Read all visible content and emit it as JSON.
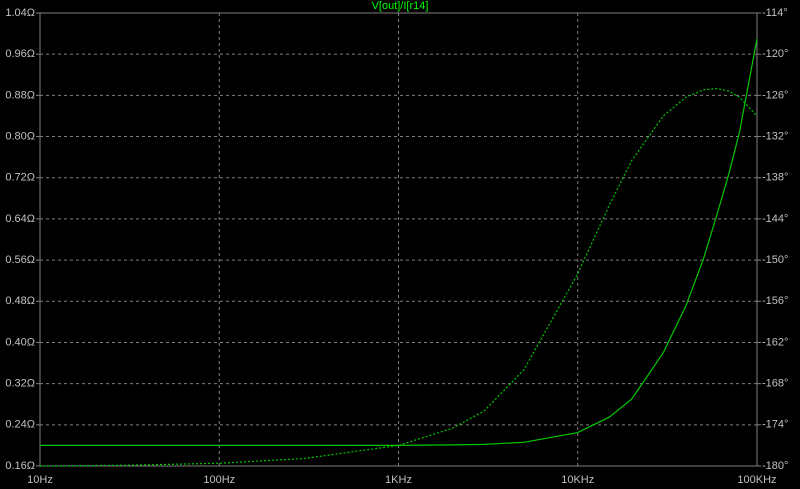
{
  "chart_data": {
    "type": "line",
    "title": "V[out]/I[r14]",
    "x": [
      10,
      30,
      100,
      300,
      1000,
      2000,
      3000,
      5000,
      10000,
      15000,
      20000,
      30000,
      40000,
      50000,
      60000,
      70000,
      80000,
      100000
    ],
    "xscale": "log",
    "xlim": [
      10,
      100000
    ],
    "xticks": [
      {
        "value": 10,
        "label": "10Hz"
      },
      {
        "value": 100,
        "label": "100Hz"
      },
      {
        "value": 1000,
        "label": "1KHz"
      },
      {
        "value": 10000,
        "label": "10KHz"
      },
      {
        "value": 100000,
        "label": "100KHz"
      }
    ],
    "ylim": [
      0.16,
      1.04
    ],
    "yticks": [
      {
        "value": 0.16,
        "label": "0.16Ω"
      },
      {
        "value": 0.24,
        "label": "0.24Ω"
      },
      {
        "value": 0.32,
        "label": "0.32Ω"
      },
      {
        "value": 0.4,
        "label": "0.40Ω"
      },
      {
        "value": 0.48,
        "label": "0.48Ω"
      },
      {
        "value": 0.56,
        "label": "0.56Ω"
      },
      {
        "value": 0.64,
        "label": "0.64Ω"
      },
      {
        "value": 0.72,
        "label": "0.72Ω"
      },
      {
        "value": 0.8,
        "label": "0.80Ω"
      },
      {
        "value": 0.88,
        "label": "0.88Ω"
      },
      {
        "value": 0.96,
        "label": "0.96Ω"
      },
      {
        "value": 1.04,
        "label": "1.04Ω"
      }
    ],
    "y2lim": [
      -180,
      -114
    ],
    "y2ticks": [
      {
        "value": -180,
        "label": "-180°"
      },
      {
        "value": -174,
        "label": "-174°"
      },
      {
        "value": -168,
        "label": "-168°"
      },
      {
        "value": -162,
        "label": "-162°"
      },
      {
        "value": -156,
        "label": "-156°"
      },
      {
        "value": -150,
        "label": "-150°"
      },
      {
        "value": -144,
        "label": "-144°"
      },
      {
        "value": -138,
        "label": "-138°"
      },
      {
        "value": -132,
        "label": "-132°"
      },
      {
        "value": -126,
        "label": "-126°"
      },
      {
        "value": -120,
        "label": "-120°"
      },
      {
        "value": -114,
        "label": "-114°"
      }
    ],
    "grid": true,
    "series": [
      {
        "color": "#00c800",
        "dash": false,
        "values": [
          0.2,
          0.2,
          0.2,
          0.2,
          0.2,
          0.201,
          0.202,
          0.206,
          0.225,
          0.255,
          0.29,
          0.38,
          0.47,
          0.56,
          0.65,
          0.73,
          0.81,
          0.99
        ]
      },
      {
        "color": "#00c800",
        "dash": true,
        "axis": "y2",
        "values": [
          -180,
          -179.9,
          -179.6,
          -178.9,
          -177,
          -174.5,
          -172,
          -166,
          -152,
          -142,
          -135.5,
          -129,
          -126.3,
          -125.2,
          -125,
          -125.4,
          -126.3,
          -129
        ]
      }
    ]
  }
}
